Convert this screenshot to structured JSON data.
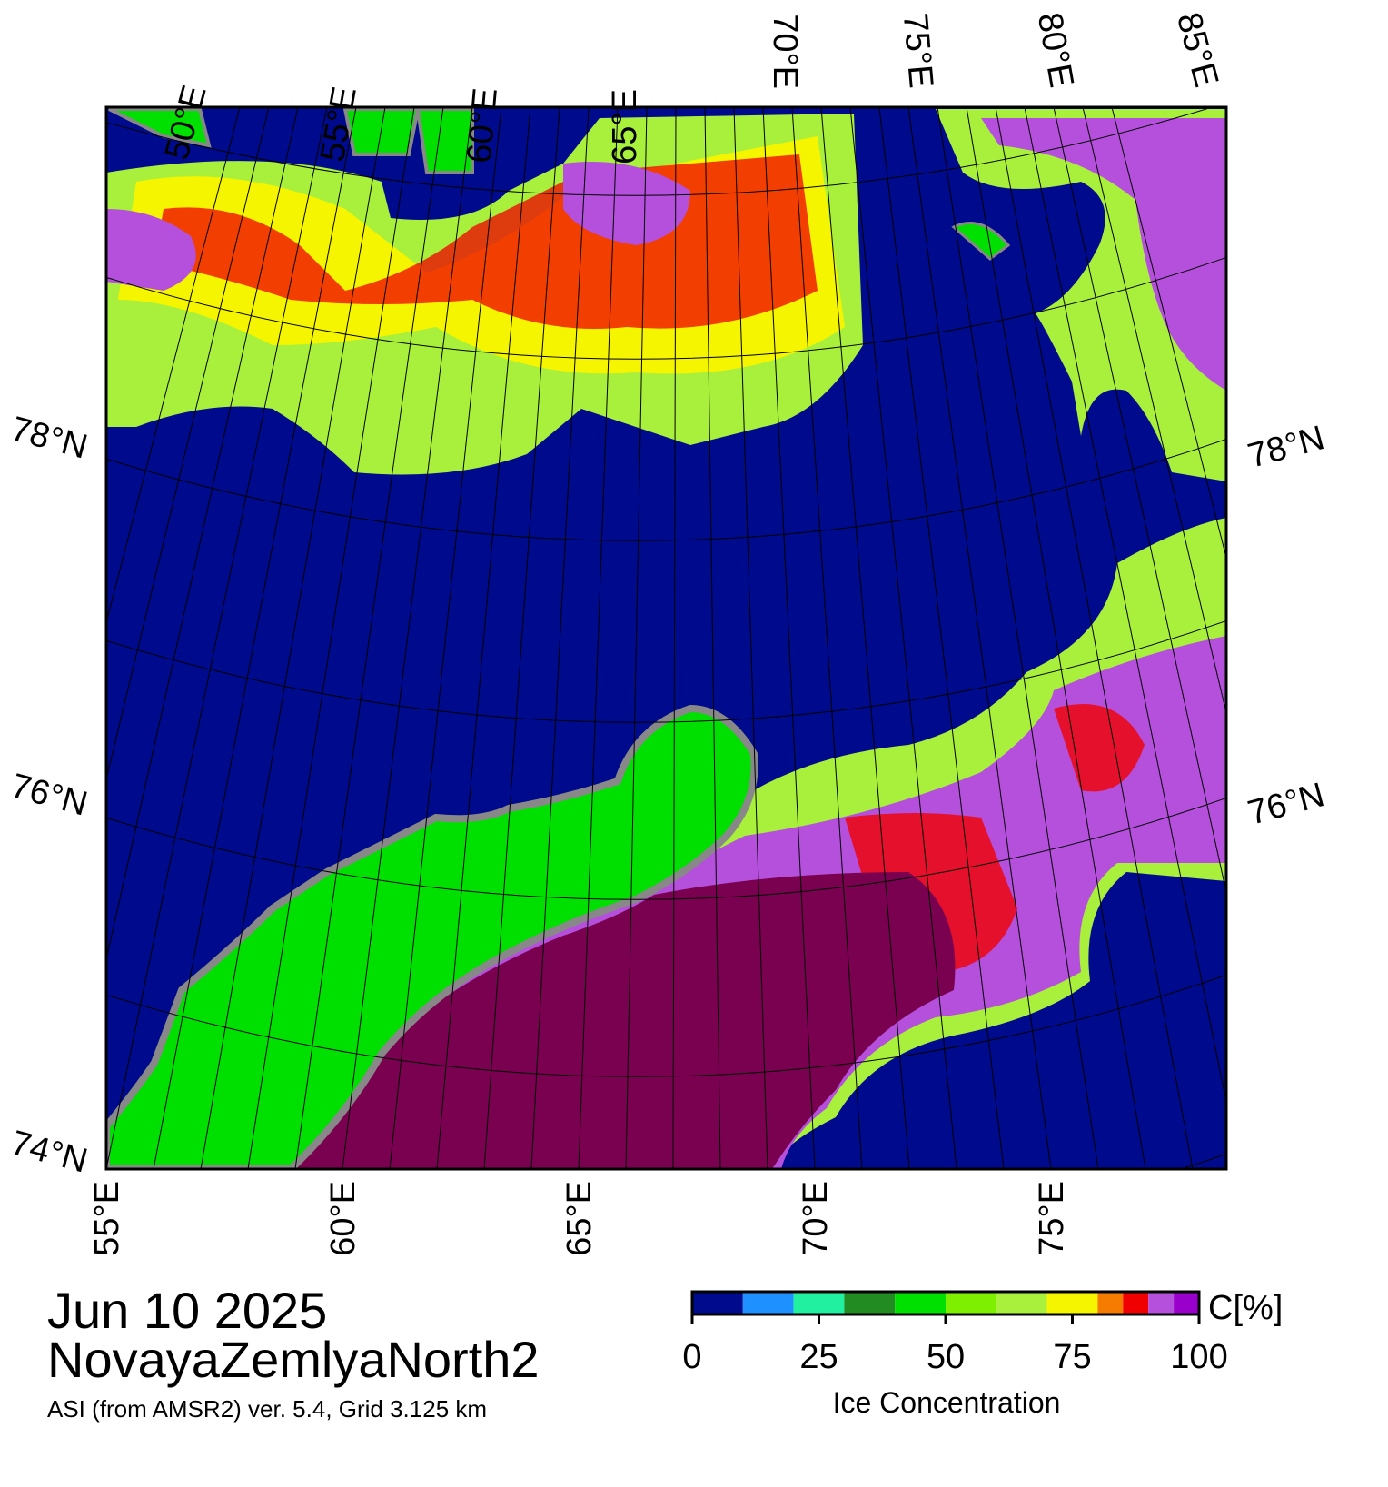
{
  "map": {
    "date": "Jun 10 2025",
    "region": "NovayaZemlyaNorth2",
    "caption": "ASI (from AMSR2) ver. 5.4,  Grid 3.125 km",
    "top_lon_labels": [
      "50°E",
      "55°E",
      "60°E",
      "65°E",
      "70°E",
      "75°E",
      "80°E",
      "85°E"
    ],
    "bottom_lon_labels": [
      "55°E",
      "60°E",
      "65°E",
      "70°E",
      "75°E"
    ],
    "left_lat_labels": [
      "78°N",
      "76°N",
      "74°N"
    ],
    "right_lat_labels": [
      "78°N",
      "76°N"
    ]
  },
  "colorbar": {
    "label": "Ice Concentration",
    "unit": "C[%]",
    "ticks": [
      0,
      25,
      50,
      75,
      100
    ],
    "bounds": [
      0,
      10,
      20,
      30,
      40,
      50,
      60,
      70,
      80,
      85,
      90,
      95,
      100
    ],
    "colors": [
      "#000a8c",
      "#1e90ff",
      "#20f0a0",
      "#228b22",
      "#00e000",
      "#7fef00",
      "#a8f03c",
      "#f5f500",
      "#f57c00",
      "#f00000",
      "#b450dc",
      "#9900cc"
    ]
  }
}
